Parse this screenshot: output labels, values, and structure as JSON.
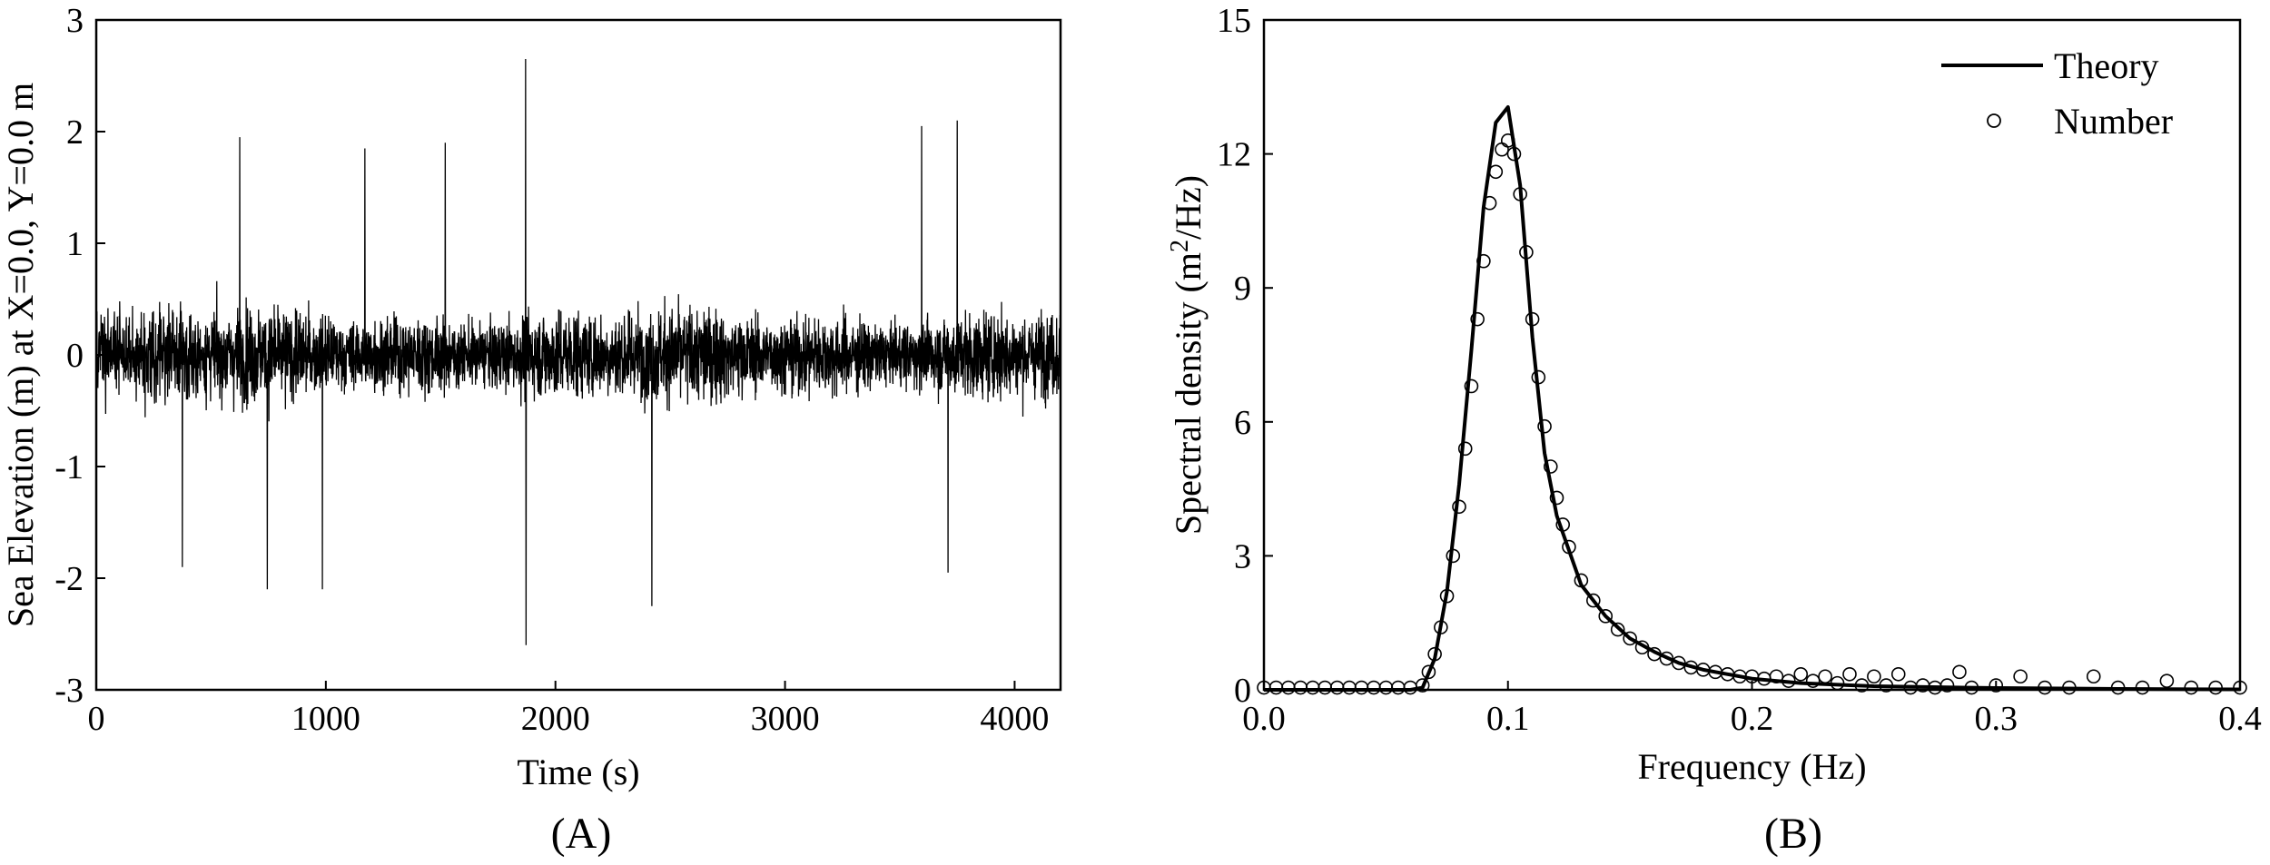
{
  "chart_data": [
    {
      "type": "line",
      "panel_label": "(A)",
      "xlabel": "Time (s)",
      "ylabel": "Sea Elevation (m) at X=0.0, Y=0.0 m",
      "xlim": [
        0,
        4200
      ],
      "ylim": [
        -3,
        3
      ],
      "xticks": [
        0,
        1000,
        2000,
        3000,
        4000
      ],
      "xtick_labels": [
        "0",
        "1000",
        "2000",
        "3000",
        "4000"
      ],
      "yticks": [
        -3,
        -2,
        -1,
        0,
        1,
        2,
        3
      ],
      "ytick_labels": [
        "-3",
        "-2",
        "-1",
        "0",
        "1",
        "2",
        "3"
      ],
      "grid": false,
      "series": [
        {
          "color": "#000000",
          "sampling_interval_s": 1,
          "typical_amplitude_m": 0.35,
          "extremes": [
            {
              "x": 1870,
              "y": 2.65
            },
            {
              "x": 1872,
              "y": -2.6
            },
            {
              "x": 2420,
              "y": -2.25
            },
            {
              "x": 745,
              "y": -2.1
            },
            {
              "x": 985,
              "y": -2.1
            },
            {
              "x": 3595,
              "y": 2.05
            },
            {
              "x": 3750,
              "y": 2.1
            },
            {
              "x": 3710,
              "y": -1.95
            },
            {
              "x": 375,
              "y": -1.9
            },
            {
              "x": 1520,
              "y": 1.9
            },
            {
              "x": 625,
              "y": 1.95
            },
            {
              "x": 1170,
              "y": 1.85
            }
          ]
        }
      ]
    },
    {
      "type": "line",
      "panel_label": "(B)",
      "xlabel": "Frequency (Hz)",
      "ylabel_main": "Spectral density (m",
      "ylabel_sup": "2",
      "ylabel_tail": "/Hz)",
      "xlim": [
        0.0,
        0.4
      ],
      "ylim": [
        0,
        15
      ],
      "xticks": [
        0.0,
        0.1,
        0.2,
        0.3,
        0.4
      ],
      "xtick_labels": [
        "0.0",
        "0.1",
        "0.2",
        "0.3",
        "0.4"
      ],
      "yticks": [
        0,
        3,
        6,
        9,
        12,
        15
      ],
      "ytick_labels": [
        "0",
        "3",
        "6",
        "9",
        "12",
        "15"
      ],
      "grid": false,
      "legend": {
        "position": "top-right",
        "entries": [
          {
            "label": "Theory",
            "marker": "line"
          },
          {
            "label": "Number",
            "marker": "open-circle"
          }
        ]
      },
      "series": [
        {
          "name": "Theory",
          "style": "solid-line",
          "color": "#000000",
          "x": [
            0.0,
            0.06,
            0.065,
            0.07,
            0.075,
            0.08,
            0.085,
            0.09,
            0.095,
            0.1,
            0.105,
            0.11,
            0.115,
            0.12,
            0.13,
            0.14,
            0.15,
            0.16,
            0.17,
            0.18,
            0.19,
            0.2,
            0.22,
            0.25,
            0.3,
            0.35,
            0.4
          ],
          "y": [
            0.0,
            0.0,
            0.05,
            0.7,
            2.2,
            4.6,
            7.6,
            10.8,
            12.7,
            13.05,
            11.3,
            7.9,
            5.3,
            3.9,
            2.35,
            1.65,
            1.15,
            0.85,
            0.6,
            0.45,
            0.35,
            0.25,
            0.15,
            0.08,
            0.04,
            0.02,
            0.01
          ]
        },
        {
          "name": "Number",
          "style": "open-circle",
          "color": "#000000",
          "x": [
            0.0,
            0.005,
            0.01,
            0.015,
            0.02,
            0.025,
            0.03,
            0.035,
            0.04,
            0.045,
            0.05,
            0.055,
            0.06,
            0.065,
            0.0675,
            0.07,
            0.0725,
            0.075,
            0.0775,
            0.08,
            0.0825,
            0.085,
            0.0875,
            0.09,
            0.0925,
            0.095,
            0.0975,
            0.1,
            0.1025,
            0.105,
            0.1075,
            0.11,
            0.1125,
            0.115,
            0.1175,
            0.12,
            0.1225,
            0.125,
            0.13,
            0.135,
            0.14,
            0.145,
            0.15,
            0.155,
            0.16,
            0.165,
            0.17,
            0.175,
            0.18,
            0.185,
            0.19,
            0.195,
            0.2,
            0.205,
            0.21,
            0.215,
            0.22,
            0.225,
            0.23,
            0.235,
            0.24,
            0.245,
            0.25,
            0.255,
            0.26,
            0.265,
            0.27,
            0.275,
            0.28,
            0.285,
            0.29,
            0.3,
            0.31,
            0.32,
            0.33,
            0.34,
            0.35,
            0.36,
            0.37,
            0.38,
            0.39,
            0.4
          ],
          "y": [
            0.05,
            0.05,
            0.05,
            0.05,
            0.05,
            0.05,
            0.05,
            0.05,
            0.05,
            0.05,
            0.05,
            0.05,
            0.05,
            0.1,
            0.4,
            0.8,
            1.4,
            2.1,
            3.0,
            4.1,
            5.4,
            6.8,
            8.3,
            9.6,
            10.9,
            11.6,
            12.1,
            12.3,
            12.0,
            11.1,
            9.8,
            8.3,
            7.0,
            5.9,
            5.0,
            4.3,
            3.7,
            3.2,
            2.45,
            2.0,
            1.65,
            1.35,
            1.15,
            0.95,
            0.8,
            0.7,
            0.6,
            0.5,
            0.45,
            0.4,
            0.35,
            0.3,
            0.3,
            0.25,
            0.3,
            0.2,
            0.35,
            0.2,
            0.3,
            0.15,
            0.35,
            0.1,
            0.3,
            0.1,
            0.35,
            0.05,
            0.1,
            0.05,
            0.1,
            0.4,
            0.05,
            0.1,
            0.3,
            0.05,
            0.05,
            0.3,
            0.05,
            0.05,
            0.2,
            0.05,
            0.05,
            0.05
          ]
        }
      ]
    }
  ]
}
